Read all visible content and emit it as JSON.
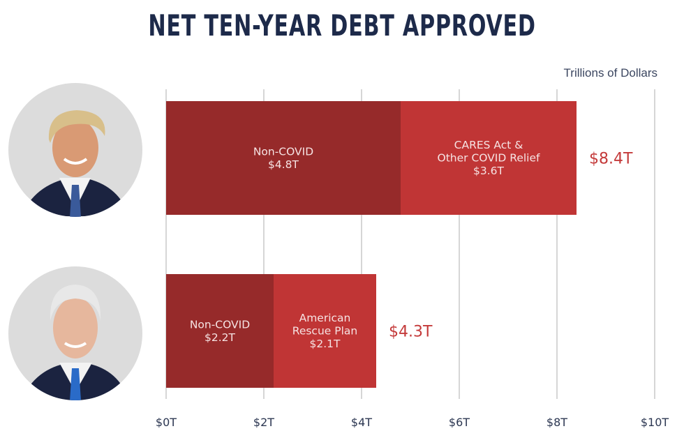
{
  "chart_data": {
    "type": "bar",
    "orientation": "horizontal",
    "stacked": true,
    "title": "NET TEN-YEAR DEBT APPROVED",
    "unit_label": "Trillions of Dollars",
    "xlim": [
      0,
      10
    ],
    "x_ticks": [
      "$0T",
      "$2T",
      "$4T",
      "$6T",
      "$8T",
      "$10T"
    ],
    "x_tick_values": [
      0,
      2,
      4,
      6,
      8,
      10
    ],
    "grid": true,
    "rows": [
      {
        "portrait": "trump-portrait",
        "total": 8.4,
        "total_label": "$8.4T",
        "segments": [
          {
            "lines": [
              "Non-COVID",
              "$4.8T"
            ],
            "value": 4.8,
            "color": "#962a2a"
          },
          {
            "lines": [
              "CARES Act &",
              "Other COVID Relief",
              "$3.6T"
            ],
            "value": 3.6,
            "color": "#c03535"
          }
        ]
      },
      {
        "portrait": "biden-portrait",
        "total": 4.3,
        "total_label": "$4.3T",
        "segments": [
          {
            "lines": [
              "Non-COVID",
              "$2.2T"
            ],
            "value": 2.2,
            "color": "#962a2a"
          },
          {
            "lines": [
              "American",
              "Rescue Plan",
              "$2.1T"
            ],
            "value": 2.1,
            "color": "#c03535"
          }
        ]
      }
    ]
  }
}
